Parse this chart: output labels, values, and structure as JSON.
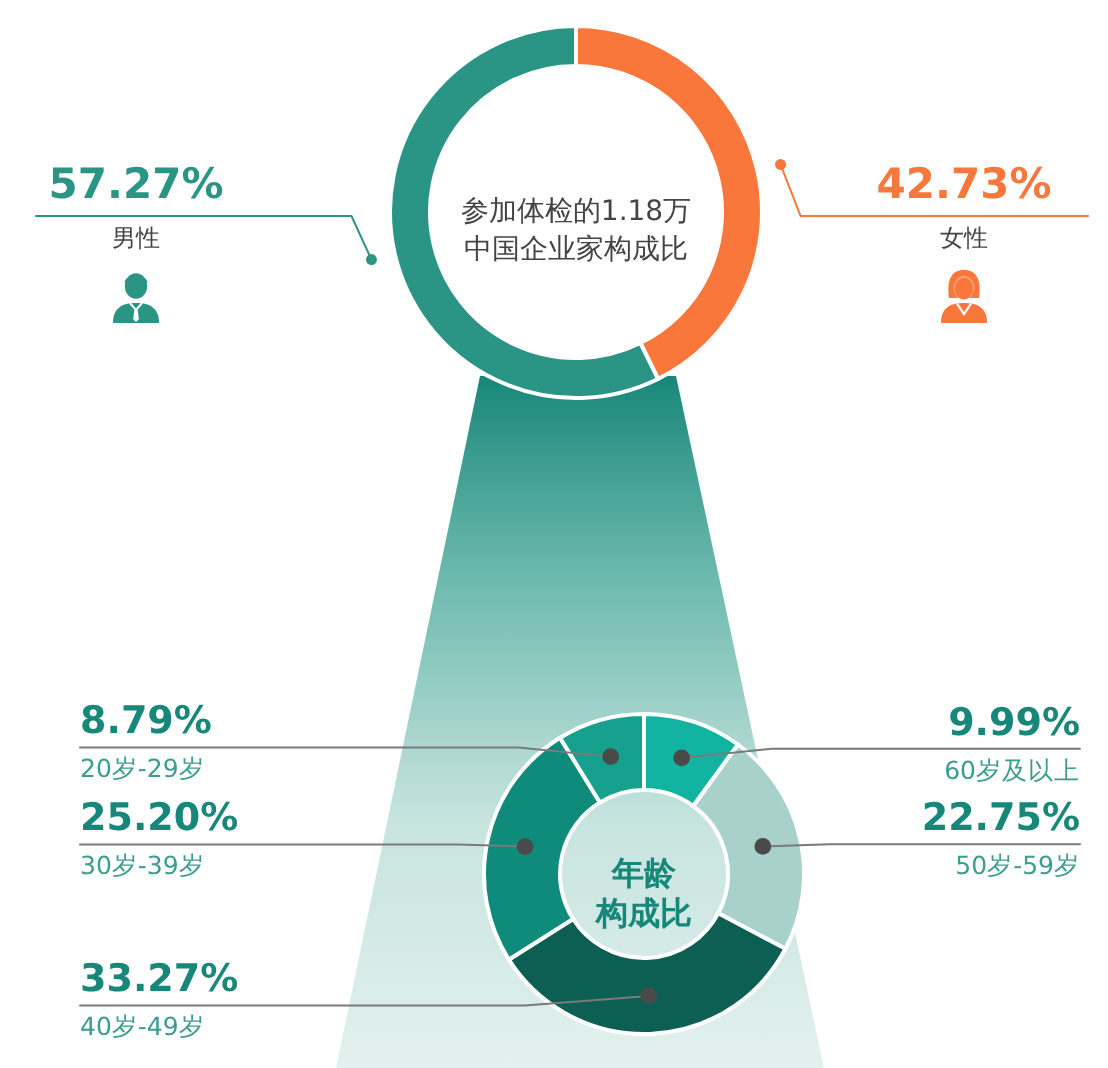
{
  "chart_data": [
    {
      "type": "donut",
      "title": "参加体检的1.18万中国企业家构成比",
      "categories": [
        "女性",
        "男性"
      ],
      "values": [
        42.73,
        57.27
      ],
      "colors": [
        "#f9773a",
        "#2a9585"
      ],
      "value_labels": [
        "42.73%",
        "57.27%"
      ]
    },
    {
      "type": "donut",
      "title": "年龄构成比",
      "categories": [
        "60岁及以上",
        "50岁-59岁",
        "40岁-49岁",
        "30岁-39岁",
        "20岁-29岁"
      ],
      "values": [
        9.99,
        22.75,
        33.27,
        25.2,
        8.79
      ],
      "colors": [
        "#12b3a0",
        "#a9d1cb",
        "#0d5f54",
        "#0e8b7a",
        "#16a08e"
      ],
      "value_labels": [
        "9.99%",
        "22.75%",
        "33.27%",
        "25.20%",
        "8.79%"
      ]
    }
  ]
}
